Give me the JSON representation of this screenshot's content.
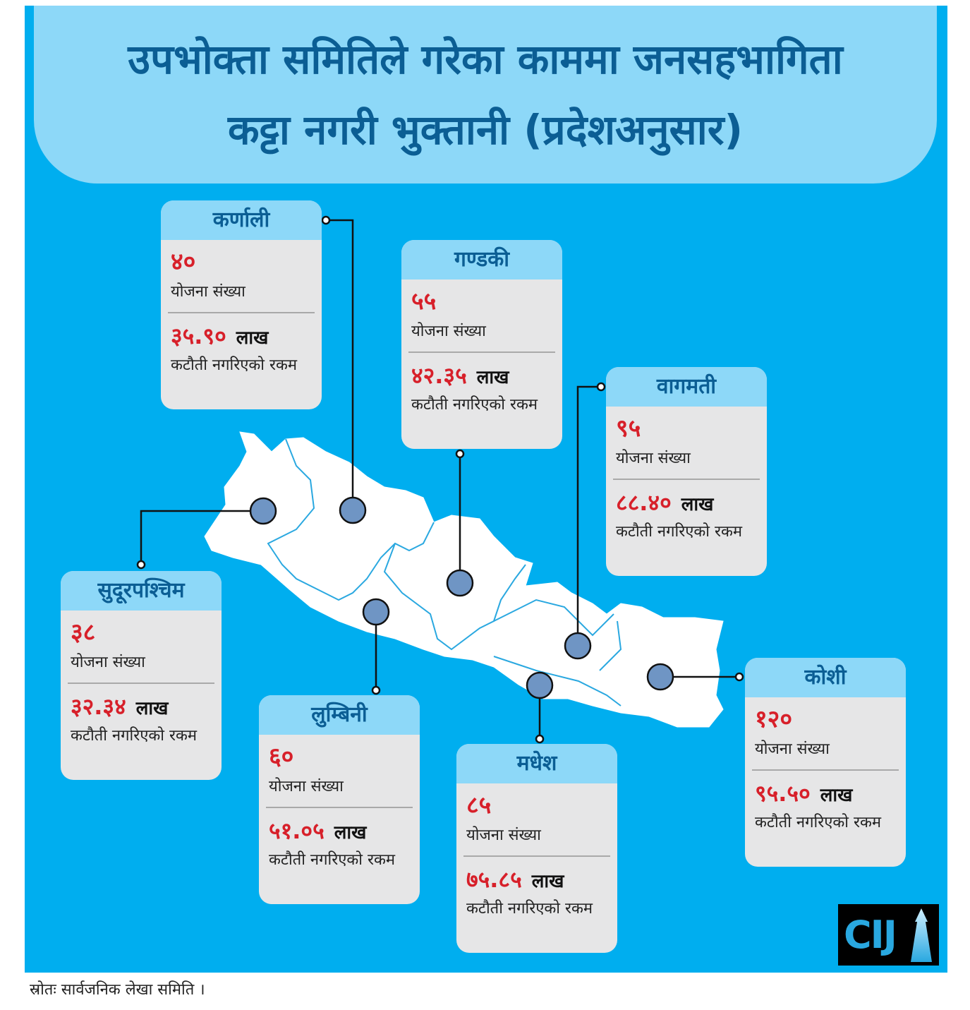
{
  "title": {
    "line1": "उपभोक्ता समितिले गरेका काममा जनसहभागिता",
    "line2": "कट्टा नगरी भुक्तानी (प्रदेशअनुसार)"
  },
  "labels": {
    "projects": "योजना संख्या",
    "amount": "कटौती नगरिएको रकम",
    "unit": "लाख"
  },
  "provinces": [
    {
      "name": "कर्णाली",
      "projects": "४०",
      "amount": "३५.९०"
    },
    {
      "name": "गण्डकी",
      "projects": "५५",
      "amount": "४२.३५"
    },
    {
      "name": "वागमती",
      "projects": "९५",
      "amount": "८८.४०"
    },
    {
      "name": "सुदूरपश्चिम",
      "projects": "३८",
      "amount": "३२.३४"
    },
    {
      "name": "लुम्बिनी",
      "projects": "६०",
      "amount": "५१.०५"
    },
    {
      "name": "मधेश",
      "projects": "८५",
      "amount": "७५.८५"
    },
    {
      "name": "कोशी",
      "projects": "१२०",
      "amount": "९५.५०"
    }
  ],
  "source": "स्रोतः सार्वजनिक लेखा समिति ।",
  "logo": "CIJ",
  "colors": {
    "background": "#00aeef",
    "header": "#8dd8f8",
    "title": "#0b5e94",
    "number": "#d7202a",
    "marker": "#6f95c4"
  }
}
